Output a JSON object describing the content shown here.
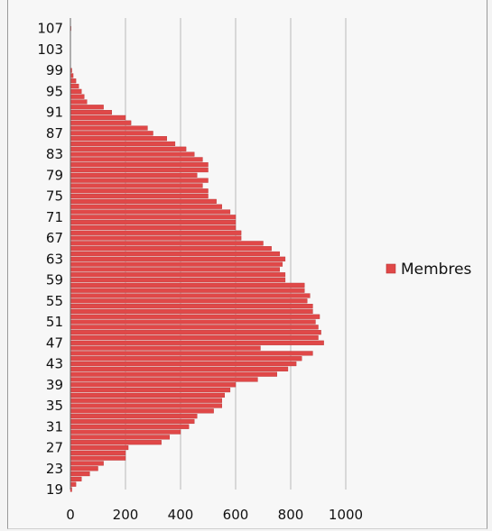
{
  "chart_data": {
    "type": "bar",
    "orientation": "horizontal",
    "title": "",
    "xlabel": "",
    "ylabel": "",
    "xlim": [
      0,
      1000
    ],
    "ylim": [
      19,
      109
    ],
    "x_ticks": [
      0,
      200,
      400,
      600,
      800,
      1000
    ],
    "y_ticks": [
      19,
      23,
      27,
      31,
      35,
      39,
      43,
      47,
      51,
      55,
      59,
      63,
      67,
      71,
      75,
      79,
      83,
      87,
      91,
      95,
      99,
      103,
      107
    ],
    "grid": "vertical",
    "legend_position": "right",
    "bar_color": "#e04848",
    "series": [
      {
        "name": "Membres",
        "ages": [
          19,
          20,
          21,
          22,
          23,
          24,
          25,
          26,
          27,
          28,
          29,
          30,
          31,
          32,
          33,
          34,
          35,
          36,
          37,
          38,
          39,
          40,
          41,
          42,
          43,
          44,
          45,
          46,
          47,
          48,
          49,
          50,
          51,
          52,
          53,
          54,
          55,
          56,
          57,
          58,
          59,
          60,
          61,
          62,
          63,
          64,
          65,
          66,
          67,
          68,
          69,
          70,
          71,
          72,
          73,
          74,
          75,
          76,
          77,
          78,
          79,
          80,
          81,
          82,
          83,
          84,
          85,
          86,
          87,
          88,
          89,
          90,
          91,
          92,
          93,
          94,
          95,
          96,
          97,
          98,
          99,
          100,
          101,
          102,
          103,
          104,
          105,
          106,
          107,
          108
        ],
        "values": [
          5,
          20,
          40,
          70,
          100,
          120,
          200,
          200,
          210,
          330,
          360,
          400,
          430,
          450,
          460,
          520,
          550,
          550,
          560,
          580,
          600,
          680,
          750,
          790,
          820,
          840,
          880,
          690,
          920,
          900,
          910,
          900,
          890,
          905,
          880,
          880,
          860,
          870,
          850,
          850,
          780,
          780,
          760,
          770,
          780,
          760,
          730,
          700,
          620,
          620,
          600,
          600,
          600,
          580,
          550,
          530,
          500,
          500,
          480,
          500,
          460,
          500,
          500,
          480,
          450,
          420,
          380,
          350,
          300,
          280,
          220,
          200,
          150,
          120,
          60,
          50,
          40,
          30,
          20,
          10,
          5,
          0,
          0,
          0,
          0,
          0,
          0,
          0,
          2,
          0
        ]
      }
    ]
  }
}
